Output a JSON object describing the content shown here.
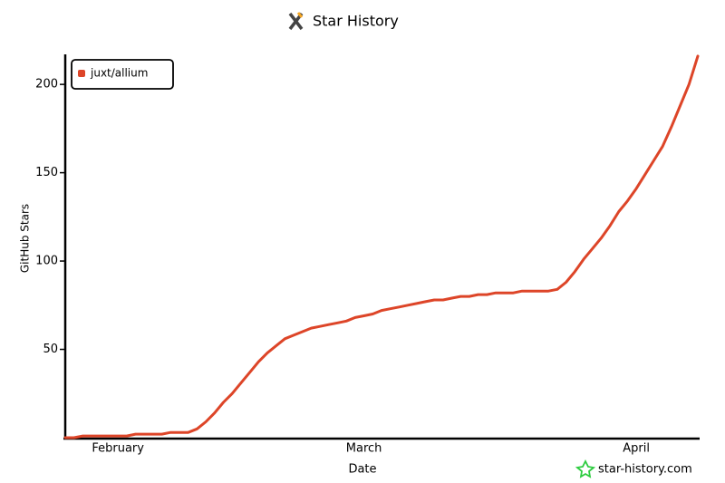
{
  "chart_data": {
    "type": "line",
    "title": "Star History",
    "x_label": "Date",
    "y_label": "GitHub Stars",
    "watermark": "star-history.com",
    "categories": [
      null,
      null,
      null,
      null,
      null,
      null,
      "February",
      null,
      null,
      null,
      null,
      null,
      null,
      null,
      null,
      null,
      null,
      null,
      null,
      null,
      null,
      null,
      null,
      null,
      null,
      null,
      null,
      null,
      null,
      null,
      null,
      null,
      null,
      null,
      "March",
      null,
      null,
      null,
      null,
      null,
      null,
      null,
      null,
      null,
      null,
      null,
      null,
      null,
      null,
      null,
      null,
      null,
      null,
      null,
      null,
      null,
      null,
      null,
      null,
      null,
      null,
      null,
      null,
      null,
      null,
      "April",
      null,
      null,
      null,
      null,
      null,
      null,
      null
    ],
    "series": [
      {
        "name": "juxt/allium",
        "color": "#dd4528",
        "values": [
          0,
          0,
          1,
          1,
          1,
          1,
          1,
          1,
          2,
          2,
          2,
          2,
          3,
          3,
          3,
          5,
          9,
          14,
          20,
          25,
          31,
          37,
          43,
          48,
          52,
          56,
          58,
          60,
          62,
          63,
          64,
          65,
          66,
          68,
          69,
          70,
          72,
          73,
          74,
          75,
          76,
          77,
          78,
          78,
          79,
          80,
          80,
          81,
          81,
          82,
          82,
          82,
          83,
          83,
          83,
          83,
          84,
          88,
          94,
          101,
          107,
          113,
          120,
          128,
          134,
          141,
          149,
          157,
          165,
          176,
          188,
          200,
          216
        ]
      }
    ],
    "ylim": [
      0,
      217
    ],
    "yticks": [
      50,
      100,
      150,
      200
    ],
    "legend": "upper-left"
  }
}
